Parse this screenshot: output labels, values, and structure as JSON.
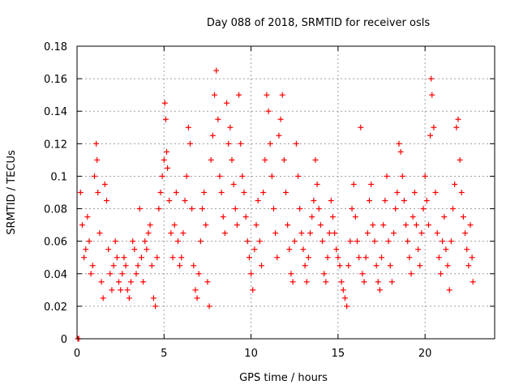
{
  "chart_data": {
    "type": "scatter",
    "title": "Day 088 of 2018, SRMTID for receiver osls",
    "xlabel": "GPS time / hours",
    "ylabel": "SRMTID / TECUs",
    "xlim": [
      0,
      24
    ],
    "ylim": [
      0,
      0.18
    ],
    "xticks": [
      0,
      5,
      10,
      15,
      20
    ],
    "xtick_labels": [
      "0",
      "5",
      "10",
      "15",
      "20"
    ],
    "yticks": [
      0,
      0.02,
      0.04,
      0.06,
      0.08,
      0.1,
      0.12,
      0.14,
      0.16,
      0.18
    ],
    "ytick_labels": [
      "0",
      "0.02",
      "0.04",
      "0.06",
      "0.08",
      "0.1",
      "0.12",
      "0.14",
      "0.16",
      "0.18"
    ],
    "grid": true,
    "marker": "+",
    "color": "#ff0000",
    "series": [
      {
        "points": [
          [
            0.05,
            0.0
          ],
          [
            0.1,
            0.0
          ],
          [
            0.2,
            0.09
          ],
          [
            0.3,
            0.07
          ],
          [
            0.4,
            0.05
          ],
          [
            0.5,
            0.055
          ],
          [
            0.6,
            0.075
          ],
          [
            0.7,
            0.06
          ],
          [
            0.8,
            0.04
          ],
          [
            0.9,
            0.045
          ],
          [
            1.0,
            0.1
          ],
          [
            1.1,
            0.12
          ],
          [
            1.15,
            0.11
          ],
          [
            1.2,
            0.09
          ],
          [
            1.3,
            0.065
          ],
          [
            1.4,
            0.035
          ],
          [
            1.5,
            0.025
          ],
          [
            1.6,
            0.095
          ],
          [
            1.7,
            0.085
          ],
          [
            1.8,
            0.055
          ],
          [
            1.9,
            0.04
          ],
          [
            2.0,
            0.03
          ],
          [
            2.1,
            0.045
          ],
          [
            2.2,
            0.06
          ],
          [
            2.3,
            0.05
          ],
          [
            2.4,
            0.035
          ],
          [
            2.5,
            0.03
          ],
          [
            2.6,
            0.04
          ],
          [
            2.7,
            0.05
          ],
          [
            2.8,
            0.045
          ],
          [
            2.9,
            0.03
          ],
          [
            3.0,
            0.025
          ],
          [
            3.1,
            0.035
          ],
          [
            3.2,
            0.06
          ],
          [
            3.3,
            0.055
          ],
          [
            3.4,
            0.04
          ],
          [
            3.5,
            0.045
          ],
          [
            3.6,
            0.08
          ],
          [
            3.7,
            0.05
          ],
          [
            3.8,
            0.035
          ],
          [
            3.9,
            0.06
          ],
          [
            4.0,
            0.055
          ],
          [
            4.1,
            0.065
          ],
          [
            4.2,
            0.07
          ],
          [
            4.3,
            0.045
          ],
          [
            4.4,
            0.025
          ],
          [
            4.5,
            0.02
          ],
          [
            4.6,
            0.05
          ],
          [
            4.7,
            0.08
          ],
          [
            4.8,
            0.09
          ],
          [
            4.9,
            0.1
          ],
          [
            5.0,
            0.11
          ],
          [
            5.05,
            0.145
          ],
          [
            5.1,
            0.135
          ],
          [
            5.15,
            0.115
          ],
          [
            5.2,
            0.105
          ],
          [
            5.3,
            0.085
          ],
          [
            5.4,
            0.065
          ],
          [
            5.5,
            0.05
          ],
          [
            5.6,
            0.07
          ],
          [
            5.7,
            0.09
          ],
          [
            5.8,
            0.06
          ],
          [
            5.9,
            0.045
          ],
          [
            6.0,
            0.05
          ],
          [
            6.1,
            0.065
          ],
          [
            6.2,
            0.085
          ],
          [
            6.3,
            0.1
          ],
          [
            6.4,
            0.13
          ],
          [
            6.5,
            0.12
          ],
          [
            6.6,
            0.08
          ],
          [
            6.7,
            0.045
          ],
          [
            6.8,
            0.03
          ],
          [
            6.9,
            0.025
          ],
          [
            7.0,
            0.04
          ],
          [
            7.1,
            0.06
          ],
          [
            7.2,
            0.08
          ],
          [
            7.3,
            0.09
          ],
          [
            7.4,
            0.07
          ],
          [
            7.5,
            0.035
          ],
          [
            7.6,
            0.02
          ],
          [
            7.7,
            0.11
          ],
          [
            7.8,
            0.125
          ],
          [
            7.9,
            0.15
          ],
          [
            8.0,
            0.165
          ],
          [
            8.1,
            0.135
          ],
          [
            8.2,
            0.1
          ],
          [
            8.3,
            0.09
          ],
          [
            8.4,
            0.075
          ],
          [
            8.5,
            0.065
          ],
          [
            8.6,
            0.145
          ],
          [
            8.7,
            0.12
          ],
          [
            8.8,
            0.13
          ],
          [
            8.9,
            0.11
          ],
          [
            9.0,
            0.095
          ],
          [
            9.1,
            0.08
          ],
          [
            9.2,
            0.07
          ],
          [
            9.3,
            0.15
          ],
          [
            9.4,
            0.12
          ],
          [
            9.5,
            0.1
          ],
          [
            9.6,
            0.09
          ],
          [
            9.7,
            0.075
          ],
          [
            9.8,
            0.06
          ],
          [
            9.9,
            0.05
          ],
          [
            10.0,
            0.04
          ],
          [
            10.1,
            0.03
          ],
          [
            10.2,
            0.055
          ],
          [
            10.3,
            0.07
          ],
          [
            10.4,
            0.085
          ],
          [
            10.5,
            0.06
          ],
          [
            10.6,
            0.045
          ],
          [
            10.7,
            0.09
          ],
          [
            10.8,
            0.11
          ],
          [
            10.9,
            0.15
          ],
          [
            11.0,
            0.14
          ],
          [
            11.1,
            0.12
          ],
          [
            11.2,
            0.1
          ],
          [
            11.3,
            0.08
          ],
          [
            11.4,
            0.065
          ],
          [
            11.5,
            0.05
          ],
          [
            11.6,
            0.125
          ],
          [
            11.7,
            0.135
          ],
          [
            11.8,
            0.15
          ],
          [
            11.9,
            0.11
          ],
          [
            12.0,
            0.09
          ],
          [
            12.1,
            0.07
          ],
          [
            12.2,
            0.055
          ],
          [
            12.3,
            0.04
          ],
          [
            12.4,
            0.035
          ],
          [
            12.5,
            0.06
          ],
          [
            12.6,
            0.12
          ],
          [
            12.7,
            0.1
          ],
          [
            12.8,
            0.08
          ],
          [
            12.9,
            0.065
          ],
          [
            13.0,
            0.055
          ],
          [
            13.1,
            0.045
          ],
          [
            13.2,
            0.035
          ],
          [
            13.3,
            0.05
          ],
          [
            13.4,
            0.065
          ],
          [
            13.5,
            0.075
          ],
          [
            13.6,
            0.085
          ],
          [
            13.7,
            0.11
          ],
          [
            13.8,
            0.095
          ],
          [
            13.9,
            0.08
          ],
          [
            14.0,
            0.07
          ],
          [
            14.1,
            0.06
          ],
          [
            14.2,
            0.04
          ],
          [
            14.3,
            0.035
          ],
          [
            14.4,
            0.05
          ],
          [
            14.5,
            0.065
          ],
          [
            14.6,
            0.085
          ],
          [
            14.7,
            0.075
          ],
          [
            14.8,
            0.065
          ],
          [
            14.9,
            0.055
          ],
          [
            15.0,
            0.05
          ],
          [
            15.1,
            0.045
          ],
          [
            15.2,
            0.035
          ],
          [
            15.3,
            0.03
          ],
          [
            15.4,
            0.025
          ],
          [
            15.5,
            0.02
          ],
          [
            15.6,
            0.045
          ],
          [
            15.7,
            0.06
          ],
          [
            15.8,
            0.08
          ],
          [
            15.9,
            0.095
          ],
          [
            16.0,
            0.075
          ],
          [
            16.1,
            0.06
          ],
          [
            16.2,
            0.05
          ],
          [
            16.3,
            0.13
          ],
          [
            16.4,
            0.04
          ],
          [
            16.5,
            0.035
          ],
          [
            16.6,
            0.05
          ],
          [
            16.7,
            0.065
          ],
          [
            16.8,
            0.085
          ],
          [
            16.9,
            0.095
          ],
          [
            17.0,
            0.07
          ],
          [
            17.1,
            0.06
          ],
          [
            17.2,
            0.045
          ],
          [
            17.3,
            0.035
          ],
          [
            17.4,
            0.03
          ],
          [
            17.5,
            0.05
          ],
          [
            17.6,
            0.07
          ],
          [
            17.7,
            0.085
          ],
          [
            17.8,
            0.1
          ],
          [
            17.9,
            0.06
          ],
          [
            18.0,
            0.045
          ],
          [
            18.1,
            0.035
          ],
          [
            18.2,
            0.065
          ],
          [
            18.3,
            0.08
          ],
          [
            18.4,
            0.09
          ],
          [
            18.5,
            0.12
          ],
          [
            18.6,
            0.115
          ],
          [
            18.7,
            0.1
          ],
          [
            18.8,
            0.085
          ],
          [
            18.9,
            0.07
          ],
          [
            19.0,
            0.06
          ],
          [
            19.1,
            0.05
          ],
          [
            19.2,
            0.04
          ],
          [
            19.3,
            0.075
          ],
          [
            19.4,
            0.09
          ],
          [
            19.5,
            0.07
          ],
          [
            19.6,
            0.055
          ],
          [
            19.7,
            0.045
          ],
          [
            19.8,
            0.065
          ],
          [
            19.9,
            0.08
          ],
          [
            20.0,
            0.1
          ],
          [
            20.1,
            0.085
          ],
          [
            20.2,
            0.07
          ],
          [
            20.3,
            0.125
          ],
          [
            20.35,
            0.16
          ],
          [
            20.4,
            0.15
          ],
          [
            20.5,
            0.13
          ],
          [
            20.6,
            0.09
          ],
          [
            20.7,
            0.065
          ],
          [
            20.8,
            0.05
          ],
          [
            20.9,
            0.04
          ],
          [
            21.0,
            0.06
          ],
          [
            21.1,
            0.075
          ],
          [
            21.2,
            0.055
          ],
          [
            21.3,
            0.045
          ],
          [
            21.4,
            0.03
          ],
          [
            21.5,
            0.06
          ],
          [
            21.6,
            0.08
          ],
          [
            21.7,
            0.095
          ],
          [
            21.8,
            0.13
          ],
          [
            21.9,
            0.135
          ],
          [
            22.0,
            0.11
          ],
          [
            22.1,
            0.09
          ],
          [
            22.2,
            0.075
          ],
          [
            22.3,
            0.065
          ],
          [
            22.4,
            0.055
          ],
          [
            22.5,
            0.045
          ],
          [
            22.6,
            0.07
          ],
          [
            22.7,
            0.05
          ],
          [
            22.75,
            0.035
          ]
        ]
      }
    ]
  }
}
